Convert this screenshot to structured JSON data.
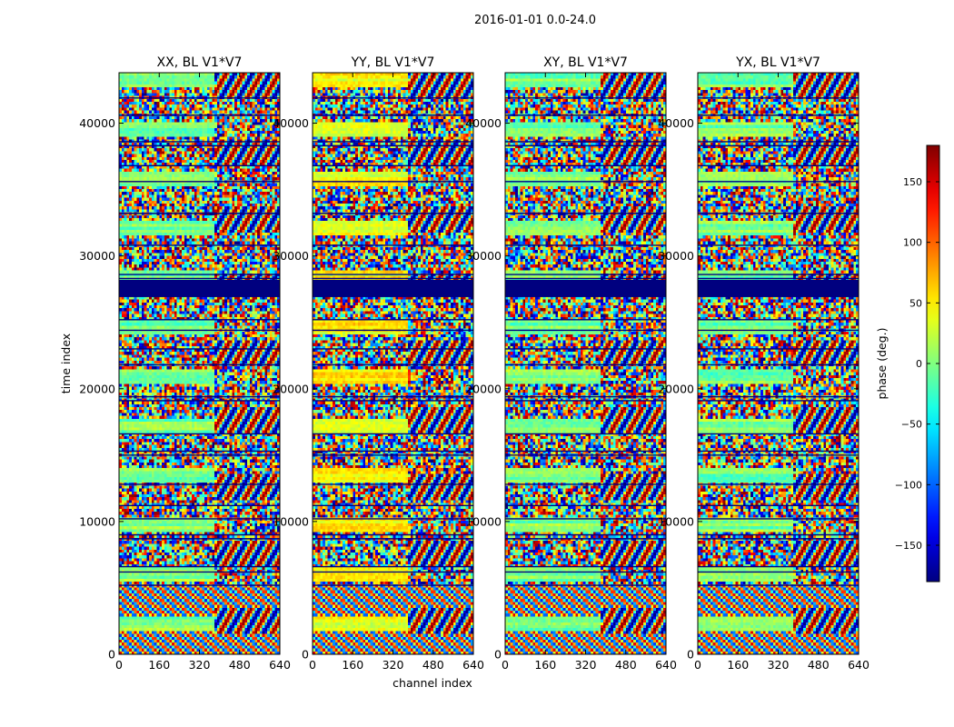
{
  "figure": {
    "suptitle": "2016-01-01 0.0-24.0"
  },
  "chart_data": {
    "type": "heatmap",
    "title": "2016-01-01 0.0-24.0",
    "xlabel": "channel index",
    "ylabel": "time index",
    "xlim": [
      0,
      640
    ],
    "ylim": [
      0,
      43800
    ],
    "xticks": [
      "0",
      "160",
      "320",
      "480",
      "640"
    ],
    "yticks": [
      "0",
      "10000",
      "20000",
      "30000",
      "40000"
    ],
    "xtick_values": [
      0,
      160,
      320,
      480,
      640
    ],
    "ytick_values": [
      0,
      10000,
      20000,
      30000,
      40000
    ],
    "panels": [
      {
        "title": "XX, BL V1*V7"
      },
      {
        "title": "YY, BL V1*V7"
      },
      {
        "title": "XY, BL V1*V7"
      },
      {
        "title": "YX, BL V1*V7"
      }
    ],
    "flagged_time_ranges": [
      [
        26900,
        28200
      ]
    ],
    "horizontal_gap_lines": [
      5200,
      6200,
      6600,
      8700,
      9000,
      10200,
      11200,
      12800,
      15000,
      15300,
      16600,
      19100,
      19400,
      21800,
      23000,
      24400,
      25200,
      28300,
      28600,
      30800,
      33200,
      35600,
      36800,
      38300,
      38600,
      40600,
      41900
    ],
    "colorbar": {
      "label": "phase (deg.)",
      "range": [
        -180,
        180
      ],
      "ticks": [
        "−150",
        "−100",
        "−50",
        "0",
        "50",
        "100",
        "150"
      ],
      "tick_values": [
        -150,
        -100,
        -50,
        0,
        50,
        100,
        150
      ],
      "colormap": "jet"
    },
    "grid": false
  }
}
